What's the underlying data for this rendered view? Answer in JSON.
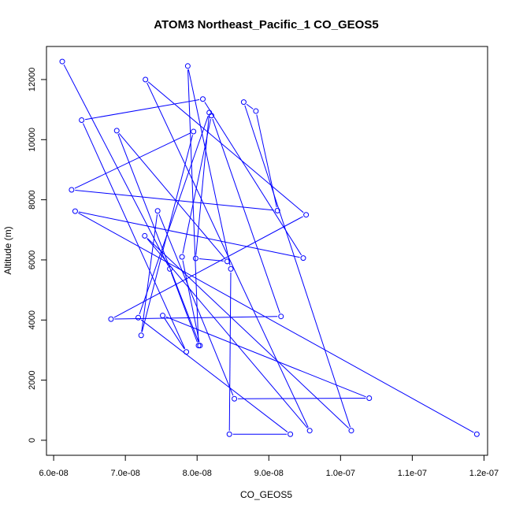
{
  "chart_data": {
    "type": "line",
    "title": "ATOM3 Northeast_Pacific_1 CO_GEOS5",
    "xlabel": "CO_GEOS5",
    "ylabel": "Altitude (m)",
    "xlim": [
      5.9e-08,
      1.205e-07
    ],
    "ylim": [
      -500,
      13100
    ],
    "xticks": [
      6e-08,
      7e-08,
      8e-08,
      9e-08,
      1e-07,
      1.1e-07,
      1.2e-07
    ],
    "xtick_labels": [
      "6.0e-08",
      "7.0e-08",
      "8.0e-08",
      "9.0e-08",
      "1.0e-07",
      "1.1e-07",
      "1.2e-07"
    ],
    "yticks": [
      0,
      2000,
      4000,
      6000,
      8000,
      10000,
      12000
    ],
    "ytick_labels": [
      "0",
      "2000",
      "4000",
      "6000",
      "8000",
      "10000",
      "12000"
    ],
    "grid": false,
    "line_color": "#0000ff",
    "marker": "open-circle",
    "series": [
      {
        "x": [
          6.12e-08,
          7.62e-08,
          8.02e-08,
          7.87e-08,
          8.47e-08,
          8.45e-08,
          9.3e-08,
          7.18e-08,
          8.17e-08,
          7.98e-08,
          8.42e-08,
          6.88e-08,
          8.04e-08,
          7.79e-08,
          8.2e-08,
          9.17e-08,
          6.8e-08,
          9.52e-08,
          7.28e-08,
          9.57e-08,
          7.27e-08,
          1.015e-07,
          8.65e-08,
          8.82e-08,
          9.12e-08,
          6.25e-08,
          7.95e-08,
          7.22e-08,
          7.45e-08,
          8.52e-08,
          1.04e-07,
          7.52e-08,
          7.85e-08,
          6.39e-08,
          8.08e-08,
          9.48e-08,
          6.3e-08,
          1.19e-07
        ],
        "y": [
          12600,
          5700,
          3150,
          12450,
          5700,
          200,
          200,
          4080,
          10900,
          6050,
          5950,
          10300,
          3150,
          6100,
          10800,
          4120,
          4030,
          7500,
          12000,
          320,
          6800,
          320,
          11250,
          10950,
          7640,
          8330,
          10270,
          3490,
          7630,
          1380,
          1400,
          4150,
          2940,
          10650,
          11350,
          6060,
          7620,
          200
        ]
      }
    ]
  }
}
